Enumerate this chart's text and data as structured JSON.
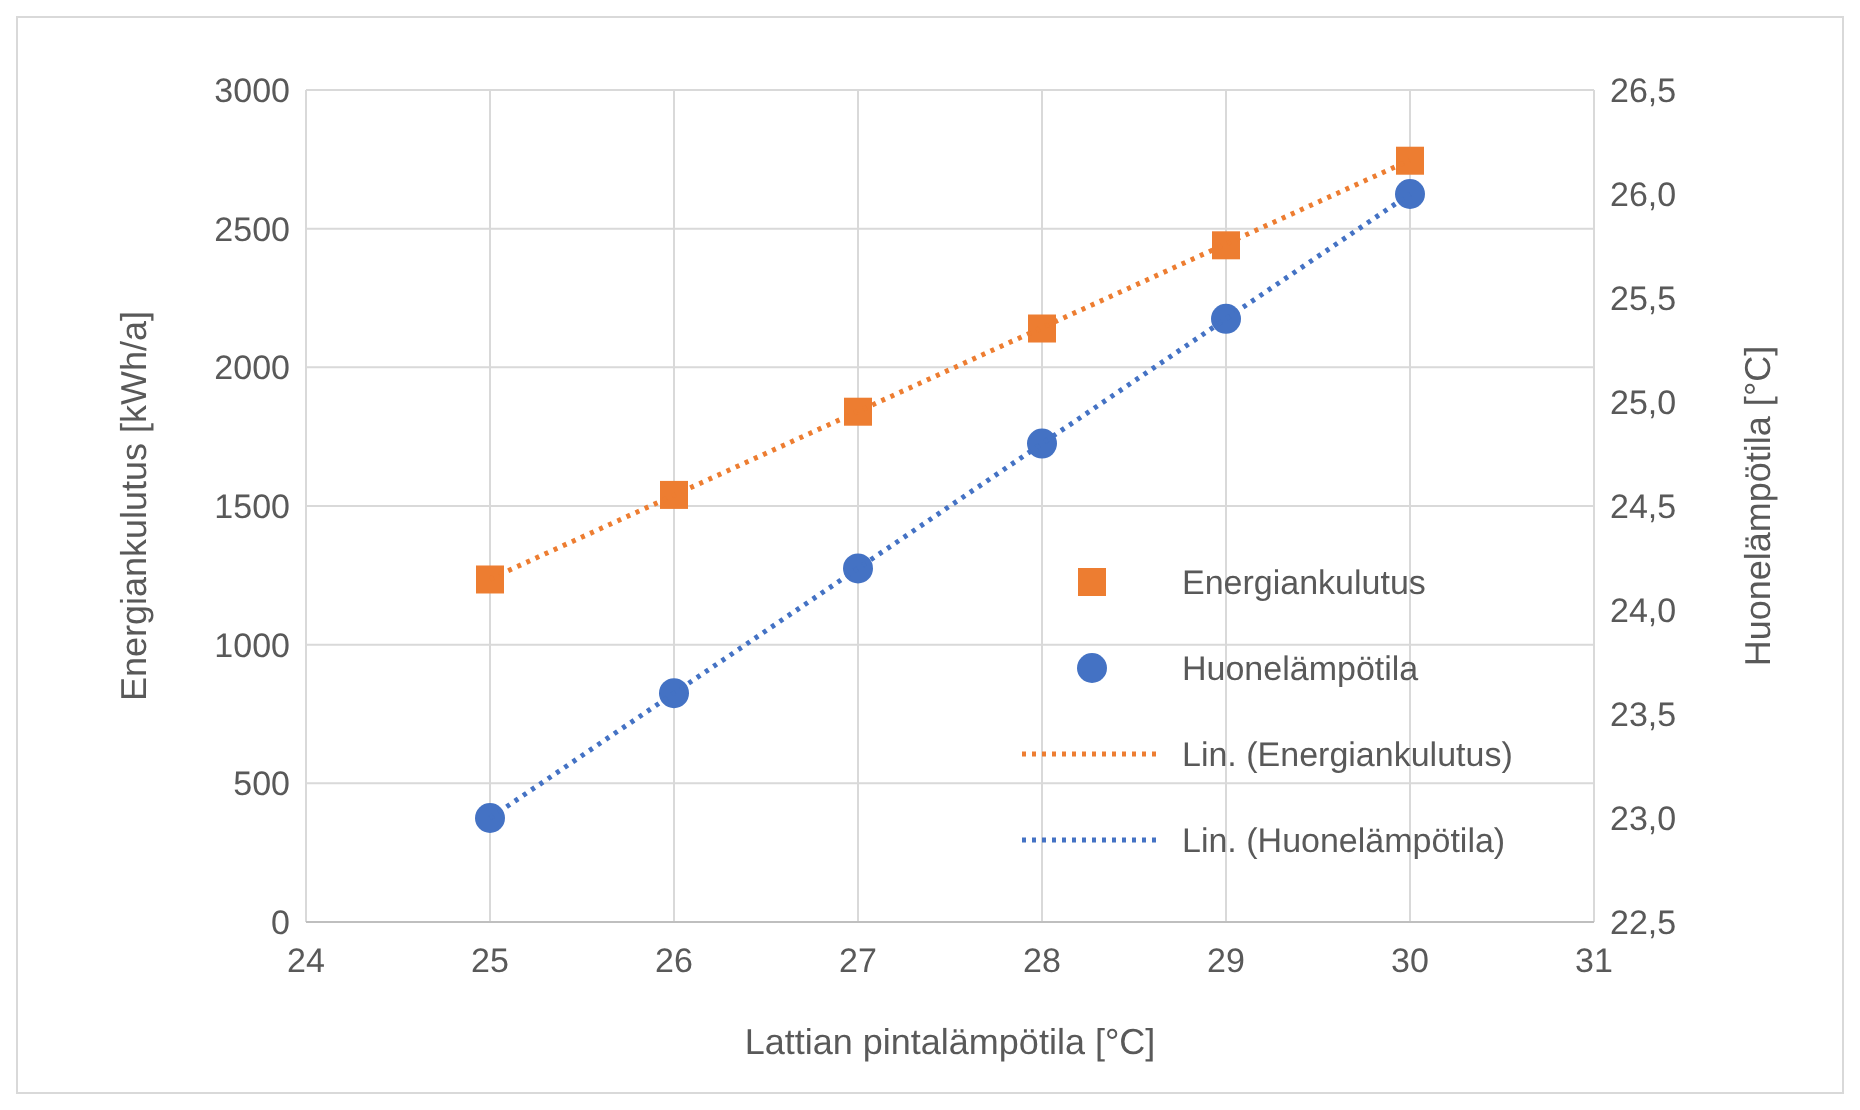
{
  "chart_data": {
    "type": "scatter",
    "xlabel": "Lattian pintalämpötila [°C]",
    "ylabel": "Energiankulutus [kWh/a]",
    "y2label": "Huonelämpötila [°C]",
    "xlim": [
      24,
      31
    ],
    "xticks": [
      24,
      25,
      26,
      27,
      28,
      29,
      30,
      31
    ],
    "ylim": [
      0,
      3000
    ],
    "yticks": [
      0,
      500,
      1000,
      1500,
      2000,
      2500,
      3000
    ],
    "y2lim": [
      22.5,
      26.5
    ],
    "y2ticks": [
      {
        "value": 22.5,
        "label": "22,5"
      },
      {
        "value": 23,
        "label": "23,0"
      },
      {
        "value": 23.5,
        "label": "23,5"
      },
      {
        "value": 24,
        "label": "24,0"
      },
      {
        "value": 24.5,
        "label": "24,5"
      },
      {
        "value": 25,
        "label": "25,0"
      },
      {
        "value": 25.5,
        "label": "25,5"
      },
      {
        "value": 26,
        "label": "26,0"
      },
      {
        "value": 26.5,
        "label": "26,5"
      }
    ],
    "grid": true,
    "legend": "right",
    "series": [
      {
        "name": "Energiankulutus",
        "marker": "square",
        "color": "#ed7d31",
        "x": [
          25,
          26,
          27,
          28,
          29,
          30
        ],
        "values": [
          1235,
          1540,
          1840,
          2140,
          2440,
          2745
        ]
      },
      {
        "name": "Huonelämpötila",
        "marker": "circle",
        "color": "#4472c4",
        "axis": "y2",
        "x": [
          25,
          26,
          27,
          28,
          29,
          30
        ],
        "values": [
          23.0,
          23.6,
          24.2,
          24.8,
          25.4,
          26.0
        ]
      },
      {
        "name": "Lin. (Energiankulutus)",
        "type": "line",
        "marker": "none",
        "line_style": "dotted",
        "color": "#ed7d31",
        "x": [
          25,
          30
        ],
        "values": [
          1237,
          2747
        ]
      },
      {
        "name": "Lin. (Huonelämpötila)",
        "type": "line",
        "marker": "none",
        "line_style": "dotted",
        "color": "#4472c4",
        "axis": "y2",
        "x": [
          25,
          30
        ],
        "values": [
          23.0,
          26.0
        ]
      }
    ]
  }
}
